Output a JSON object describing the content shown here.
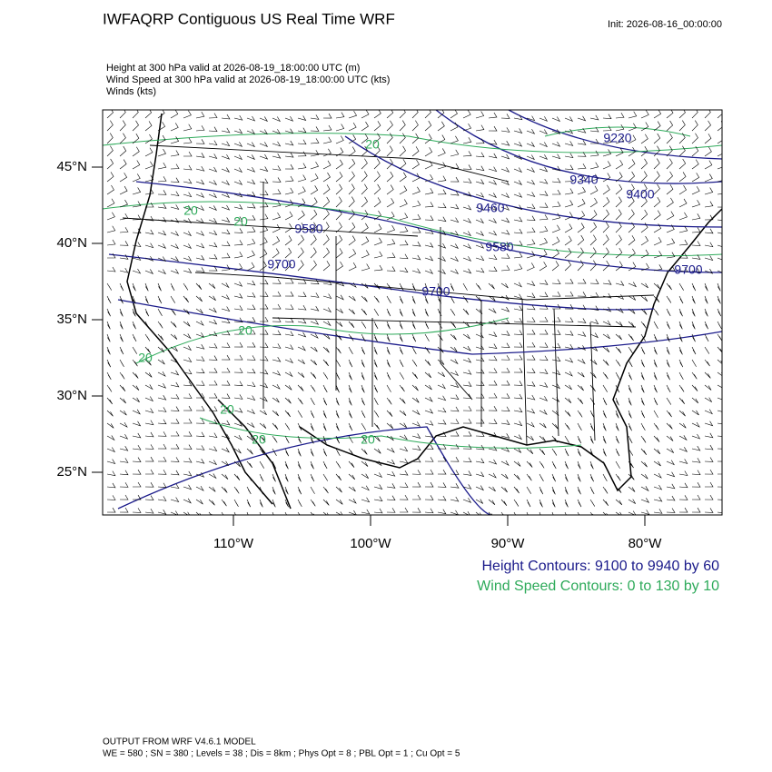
{
  "header": {
    "title": "IWFAQRP Contiguous US Real Time WRF",
    "init": "Init: 2026-08-16_00:00:00",
    "fields": [
      "Height at 300 hPa valid at 2026-08-19_18:00:00 UTC   (m)",
      "Wind Speed at 300 hPa valid at 2026-08-19_18:00:00 UTC   (kts)",
      "Winds   (kts)"
    ]
  },
  "map": {
    "lat_ticks": [
      {
        "value": 45,
        "label": "45°N"
      },
      {
        "value": 40,
        "label": "40°N"
      },
      {
        "value": 35,
        "label": "35°N"
      },
      {
        "value": 30,
        "label": "30°N"
      },
      {
        "value": 25,
        "label": "25°N"
      }
    ],
    "lon_ticks": [
      {
        "value": -110,
        "label": "110°W"
      },
      {
        "value": -100,
        "label": "100°W"
      },
      {
        "value": -90,
        "label": "90°W"
      },
      {
        "value": -80,
        "label": "80°W"
      }
    ],
    "height_labels": [
      "9220",
      "9340",
      "9460",
      "9400",
      "9580",
      "9580",
      "9700",
      "9700",
      "9700"
    ],
    "wind_labels": [
      "20",
      "20",
      "20",
      "20",
      "20",
      "20",
      "20",
      "20"
    ]
  },
  "legend": {
    "height": "Height Contours: 9100 to 9940 by 60",
    "wind": "Wind Speed Contours: 0 to 130 by 10"
  },
  "footer": {
    "model": "OUTPUT FROM WRF V4.6.1 MODEL",
    "options": "WE = 580 ; SN = 380 ; Levels = 38 ; Dis = 8km ; Phys Opt = 8 ; PBL Opt = 1 ; Cu Opt = 5"
  }
}
